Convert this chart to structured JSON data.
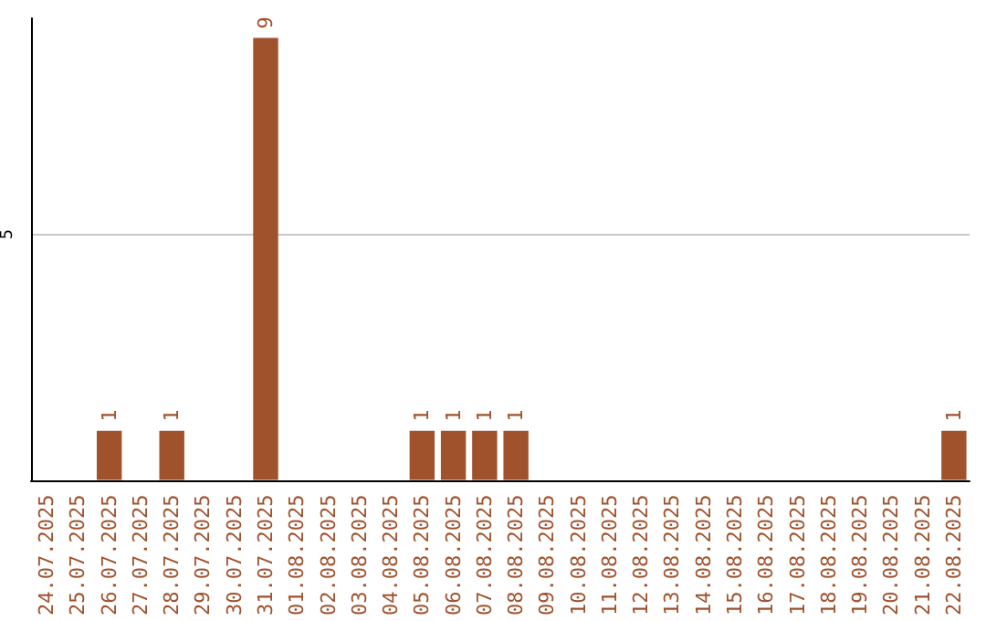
{
  "chart_data": {
    "type": "bar",
    "categories": [
      "24.07.2025",
      "25.07.2025",
      "26.07.2025",
      "27.07.2025",
      "28.07.2025",
      "29.07.2025",
      "30.07.2025",
      "31.07.2025",
      "01.08.2025",
      "02.08.2025",
      "03.08.2025",
      "04.08.2025",
      "05.08.2025",
      "06.08.2025",
      "07.08.2025",
      "08.08.2025",
      "09.08.2025",
      "10.08.2025",
      "11.08.2025",
      "12.08.2025",
      "13.08.2025",
      "14.08.2025",
      "15.08.2025",
      "16.08.2025",
      "17.08.2025",
      "18.08.2025",
      "19.08.2025",
      "20.08.2025",
      "21.08.2025",
      "22.08.2025"
    ],
    "values": [
      0,
      0,
      1,
      0,
      1,
      0,
      0,
      9,
      0,
      0,
      0,
      0,
      1,
      1,
      1,
      1,
      0,
      0,
      0,
      0,
      0,
      0,
      0,
      0,
      0,
      0,
      0,
      0,
      0,
      1
    ],
    "value_labels": [
      null,
      null,
      "1",
      null,
      "1",
      null,
      null,
      "9",
      null,
      null,
      null,
      null,
      "1",
      "1",
      "1",
      "1",
      null,
      null,
      null,
      null,
      null,
      null,
      null,
      null,
      null,
      null,
      null,
      null,
      null,
      "1"
    ],
    "color": "#a0522d",
    "ylim": [
      0,
      9.4
    ],
    "yticks": [
      5
    ],
    "grid": "y"
  }
}
